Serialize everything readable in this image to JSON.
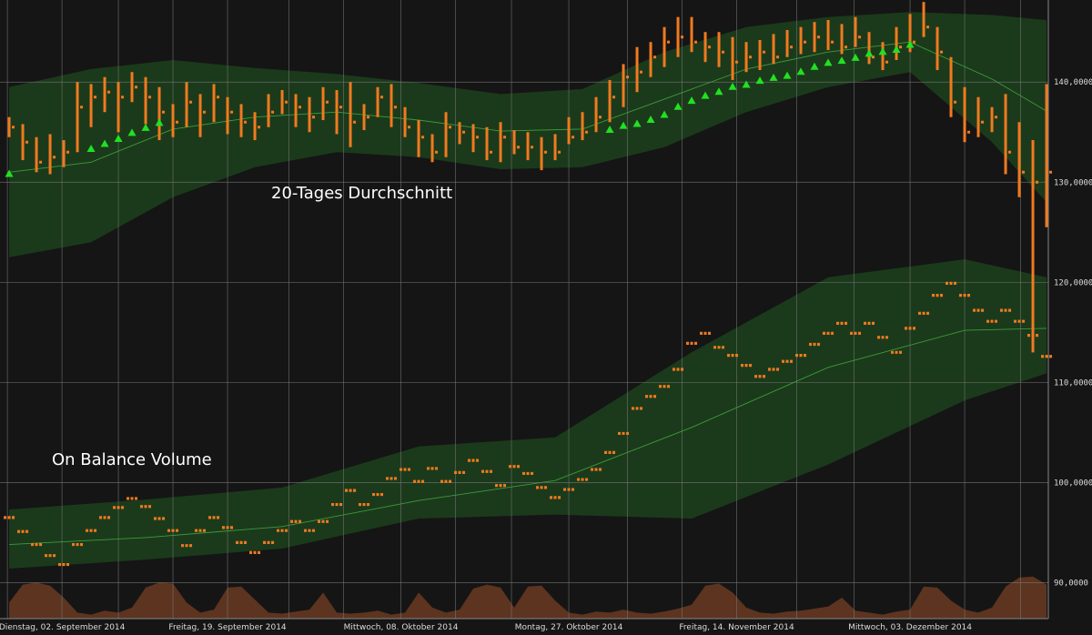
{
  "chart_data": {
    "type": "ohlc",
    "annotations": [
      "20-Tages Durchschnitt",
      "On Balance Volume"
    ],
    "xlim": [
      -0.67,
      76.13
    ],
    "ylim": [
      86.4,
      148.2
    ],
    "yticks": [
      {
        "value": 90,
        "label": "90,0000"
      },
      {
        "value": 100,
        "label": "100,0000"
      },
      {
        "value": 110,
        "label": "110,0000"
      },
      {
        "value": 120,
        "label": "120,0000"
      },
      {
        "value": 130,
        "label": "130,0000"
      },
      {
        "value": 140,
        "label": "140,0000"
      }
    ],
    "xticks": [
      {
        "value": 3.87,
        "label": "Dienstag, 02. September 2014"
      },
      {
        "value": 16,
        "label": "Freitag, 19. September 2014"
      },
      {
        "value": 28.7,
        "label": "Mittwoch, 08. Oktober 2014"
      },
      {
        "value": 41,
        "label": "Montag, 27. Oktober 2014"
      },
      {
        "value": 53.3,
        "label": "Freitag, 14. November 2014"
      },
      {
        "value": 66,
        "label": "Mittwoch, 03. Dezember 2014"
      }
    ],
    "xgrid": [
      -0.13,
      3.87,
      8,
      12,
      16,
      20.5,
      24.5,
      28.7,
      32.7,
      36.8,
      41,
      45.3,
      49.3,
      53.3,
      57.7,
      61.9,
      66,
      70,
      74.1
    ],
    "grid": true,
    "price": {
      "color": "#f07a1f",
      "high": [
        136.5,
        135.8,
        134.5,
        134.8,
        134.2,
        140,
        139.8,
        140.5,
        140,
        141,
        140.5,
        139.5,
        137.8,
        140,
        138.8,
        139.8,
        138.5,
        137.8,
        137,
        138.8,
        139.2,
        138.8,
        138.5,
        139.5,
        139.2,
        140,
        137.8,
        139.5,
        139.8,
        137.5,
        136.2,
        134.8,
        137,
        136,
        135.8,
        135.5,
        136,
        135.2,
        135,
        134.5,
        134.8,
        136.5,
        137,
        138.5,
        140.2,
        141.8,
        143.5,
        144,
        145.5,
        146.5,
        146.5,
        145,
        145,
        144.5,
        144,
        144.2,
        144.8,
        145.2,
        145.5,
        146,
        146.2,
        145.8,
        146.5,
        145,
        144,
        145.5,
        146.8,
        148,
        145.5,
        142.5,
        139.5,
        138.5,
        137.5,
        138.8,
        136,
        134.2,
        139.8
      ],
      "low": [
        134.5,
        132.2,
        131,
        130.8,
        131.5,
        133,
        135.5,
        137,
        135,
        138,
        135.8,
        134.2,
        134.5,
        135.5,
        134.5,
        136,
        134.8,
        134.5,
        134.2,
        135.5,
        136.8,
        135.5,
        135,
        136.2,
        134.8,
        133.5,
        135.2,
        136.5,
        135.5,
        134.5,
        132.5,
        132,
        132.5,
        133.8,
        133,
        132.2,
        132,
        132.8,
        132.2,
        131.2,
        132.2,
        133.8,
        134.2,
        135,
        136,
        137.5,
        139,
        140.5,
        141.5,
        142.5,
        143,
        142,
        141.5,
        140.2,
        141,
        141.2,
        141.8,
        142.5,
        142.8,
        143,
        143.2,
        142.8,
        143.5,
        141.8,
        141.2,
        142.2,
        143,
        144.5,
        141.2,
        136.5,
        134,
        134.5,
        135,
        130.8,
        128.5,
        113,
        125.5
      ],
      "close": [
        135.5,
        134,
        132,
        132.5,
        133,
        137.5,
        138.5,
        139,
        138.5,
        139.5,
        138.5,
        137,
        136,
        138,
        137,
        138.5,
        137,
        136,
        135.5,
        137,
        138,
        137.5,
        136.5,
        138,
        137.5,
        136,
        136.5,
        138.5,
        137.5,
        135.5,
        134.5,
        133,
        135.5,
        135,
        134.5,
        133,
        134.5,
        133.5,
        133.5,
        133,
        133,
        134.5,
        135,
        136.5,
        138.5,
        140.5,
        141,
        142.5,
        144,
        144.5,
        144,
        143.5,
        143,
        142,
        142.5,
        143,
        142.5,
        143.5,
        144,
        144.5,
        144,
        143.5,
        144.5,
        142.5,
        142,
        143.5,
        144,
        145.5,
        143,
        138,
        135,
        136,
        136.5,
        133,
        131,
        130,
        131
      ]
    },
    "sar": {
      "color": "#22e022",
      "values": [
        130.8,
        null,
        null,
        null,
        null,
        null,
        133.3,
        133.8,
        134.3,
        134.9,
        135.4,
        135.9,
        null,
        null,
        null,
        null,
        null,
        null,
        null,
        null,
        null,
        null,
        null,
        null,
        null,
        null,
        null,
        null,
        null,
        null,
        null,
        null,
        null,
        null,
        null,
        null,
        null,
        null,
        null,
        null,
        null,
        null,
        null,
        null,
        135.2,
        135.6,
        135.8,
        136.2,
        136.7,
        137.5,
        138.1,
        138.6,
        139,
        139.5,
        139.7,
        140.1,
        140.4,
        140.6,
        141,
        141.5,
        141.9,
        142.1,
        142.4,
        142.8,
        143,
        143.2,
        143.7,
        null,
        null,
        null,
        null,
        null,
        null,
        null,
        null,
        null,
        null
      ]
    },
    "price_band": {
      "fill": "#1b3a1b",
      "line": "#3c9a3c",
      "x": [
        0,
        6,
        12,
        18,
        24,
        30,
        36,
        42,
        48,
        54,
        60,
        66,
        72,
        76
      ],
      "upper": [
        139.5,
        141.3,
        142.2,
        141.4,
        140.8,
        139.9,
        138.8,
        139.3,
        143,
        145.5,
        146.5,
        147,
        146.7,
        146.2
      ],
      "middle": [
        131,
        132,
        135.3,
        136.5,
        137,
        136.2,
        135.1,
        135.3,
        138.3,
        141.3,
        143,
        144,
        140.3,
        137.1
      ],
      "lower": [
        122.5,
        124,
        128.5,
        131.5,
        133,
        132.5,
        131.3,
        131.5,
        133.5,
        137,
        139.5,
        141,
        134,
        128
      ]
    },
    "obv": {
      "color": "#f07a1f",
      "values": [
        96.5,
        95.1,
        93.8,
        92.7,
        91.8,
        93.8,
        95.2,
        96.5,
        97.5,
        98.4,
        97.6,
        96.4,
        95.2,
        93.7,
        95.2,
        96.5,
        95.5,
        94,
        93,
        94,
        95.2,
        96.1,
        95.2,
        96.1,
        97.8,
        99.2,
        97.8,
        98.8,
        100.4,
        101.3,
        100.1,
        101.4,
        100.1,
        101,
        102.2,
        101.1,
        99.7,
        101.6,
        100.9,
        99.5,
        98.5,
        99.3,
        100.3,
        101.3,
        103,
        104.9,
        107.4,
        108.6,
        109.6,
        111.3,
        113.9,
        114.9,
        113.5,
        112.7,
        111.7,
        110.6,
        111.3,
        112.1,
        112.7,
        113.8,
        114.9,
        115.9,
        114.9,
        115.9,
        114.5,
        113,
        115.4,
        116.9,
        118.7,
        119.9,
        118.7,
        117.2,
        116.1,
        117.2,
        116.1,
        114.7,
        112.6
      ]
    },
    "obv_band": {
      "fill": "#1b3a1b",
      "line": "#3c9a3c",
      "x": [
        0,
        10,
        20,
        30,
        40,
        50,
        60,
        70,
        76
      ],
      "upper": [
        97.3,
        98.3,
        99.5,
        103.6,
        104.5,
        113,
        120.5,
        122.3,
        120.5
      ],
      "middle": [
        93.8,
        94.5,
        95.6,
        98.2,
        100.2,
        105.5,
        111.5,
        115.2,
        115.4
      ],
      "lower": [
        91.4,
        92.3,
        93.4,
        96.4,
        96.8,
        96.4,
        101.8,
        108.2,
        110.9
      ]
    },
    "volume": {
      "color": "#6a3a22",
      "values": [
        88,
        89.8,
        90,
        89.7,
        88.5,
        87,
        86.8,
        87.2,
        87,
        87.5,
        89.5,
        90,
        89.9,
        88,
        87,
        87.3,
        89.5,
        89.6,
        88.3,
        87,
        86.9,
        87.1,
        87.3,
        89,
        87,
        86.9,
        87,
        87.2,
        86.8,
        87,
        89,
        87.5,
        87,
        87.3,
        89.4,
        89.8,
        89.5,
        87.5,
        89.6,
        89.7,
        88.2,
        87,
        86.8,
        87.1,
        87,
        87.3,
        87,
        86.9,
        87.1,
        87.4,
        87.8,
        89.7,
        89.9,
        89,
        87.5,
        87,
        86.9,
        87.1,
        87.2,
        87.4,
        87.6,
        88.5,
        87.2,
        87,
        86.8,
        87.1,
        87.3,
        89.6,
        89.5,
        88.2,
        87.3,
        87,
        87.5,
        89.6,
        90.5,
        90.6,
        89.8
      ]
    }
  }
}
